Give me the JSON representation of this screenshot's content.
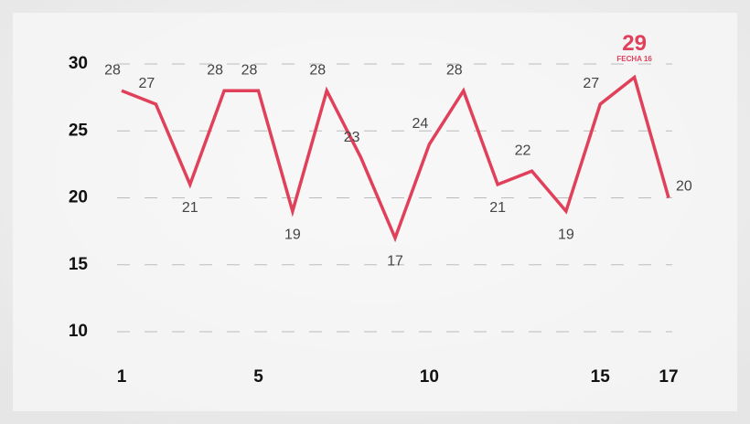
{
  "chart_data": {
    "type": "line",
    "x": [
      1,
      2,
      3,
      4,
      5,
      6,
      7,
      8,
      9,
      10,
      11,
      12,
      13,
      14,
      15,
      16,
      17
    ],
    "series": [
      {
        "name": null,
        "color": "#e0405a",
        "values": [
          28,
          27,
          21,
          28,
          28,
          19,
          28,
          23,
          17,
          24,
          28,
          21,
          22,
          19,
          27,
          29,
          20
        ]
      }
    ],
    "highlight_label": "FECHA 16",
    "xlim": [
      1,
      17
    ],
    "xticks": [
      1,
      5,
      10,
      15,
      17
    ],
    "ylim": [
      10,
      30
    ],
    "yticks": [
      10,
      15,
      20,
      25,
      30
    ],
    "grid": true
  }
}
